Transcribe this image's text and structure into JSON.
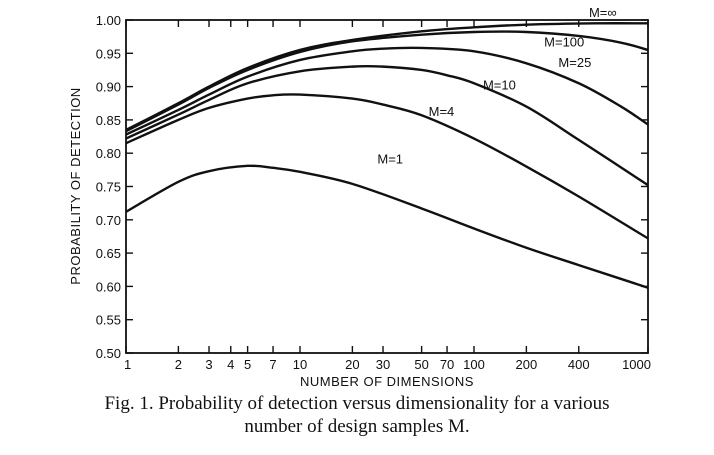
{
  "chart_data": {
    "type": "line",
    "xscale": "log",
    "xlabel": "NUMBER OF DIMENSIONS",
    "ylabel": "PROBABILITY OF DETECTION",
    "xlim": [
      1,
      1000
    ],
    "ylim": [
      0.5,
      1.0
    ],
    "x_ticks": [
      1,
      2,
      3,
      4,
      5,
      7,
      10,
      20,
      30,
      50,
      70,
      100,
      200,
      400,
      1000
    ],
    "y_ticks": [
      0.5,
      0.55,
      0.6,
      0.65,
      0.7,
      0.75,
      0.8,
      0.85,
      0.9,
      0.95,
      1.0
    ],
    "x_tick_labels": [
      "1",
      "2",
      "3",
      "4",
      "5",
      "7",
      "10",
      "20",
      "30",
      "50",
      "70",
      "100",
      "200",
      "400",
      "1000"
    ],
    "y_tick_labels": [
      "0.50",
      "0.55",
      "0.60",
      "0.65",
      "0.70",
      "0.75",
      "0.80",
      "0.85",
      "0.90",
      "0.95",
      "1.00"
    ],
    "grid": false,
    "series": [
      {
        "name": "M=∞",
        "x": [
          1,
          2,
          3,
          5,
          10,
          20,
          50,
          100,
          200,
          500,
          1000
        ],
        "y": [
          0.835,
          0.875,
          0.9,
          0.928,
          0.955,
          0.97,
          0.983,
          0.989,
          0.993,
          0.995,
          0.995
        ]
      },
      {
        "name": "M=100",
        "x": [
          1,
          2,
          3,
          5,
          10,
          20,
          50,
          100,
          200,
          400,
          700,
          1000
        ],
        "y": [
          0.833,
          0.873,
          0.898,
          0.925,
          0.952,
          0.968,
          0.978,
          0.982,
          0.982,
          0.976,
          0.966,
          0.955
        ]
      },
      {
        "name": "M=25",
        "x": [
          1,
          2,
          3,
          5,
          10,
          20,
          30,
          50,
          100,
          200,
          400,
          700,
          1000
        ],
        "y": [
          0.828,
          0.865,
          0.888,
          0.915,
          0.94,
          0.953,
          0.957,
          0.958,
          0.953,
          0.935,
          0.905,
          0.87,
          0.843
        ]
      },
      {
        "name": "M=10",
        "x": [
          1,
          2,
          3,
          5,
          10,
          20,
          30,
          50,
          70,
          100,
          200,
          400,
          1000
        ],
        "y": [
          0.822,
          0.858,
          0.88,
          0.905,
          0.923,
          0.93,
          0.93,
          0.925,
          0.917,
          0.905,
          0.87,
          0.82,
          0.752
        ]
      },
      {
        "name": "M=4",
        "x": [
          1,
          2,
          3,
          5,
          7,
          10,
          20,
          30,
          50,
          100,
          200,
          400,
          1000
        ],
        "y": [
          0.815,
          0.85,
          0.868,
          0.882,
          0.887,
          0.888,
          0.882,
          0.873,
          0.857,
          0.822,
          0.78,
          0.735,
          0.672
        ]
      },
      {
        "name": "M=1",
        "x": [
          1,
          2,
          3,
          5,
          7,
          10,
          20,
          50,
          100,
          200,
          400,
          1000
        ],
        "y": [
          0.712,
          0.757,
          0.773,
          0.781,
          0.778,
          0.772,
          0.754,
          0.717,
          0.687,
          0.658,
          0.632,
          0.598
        ]
      }
    ],
    "annotations": [
      {
        "text": "M=∞",
        "x": 550,
        "y": 1.012
      },
      {
        "text": "M=100",
        "x": 330,
        "y": 0.968
      },
      {
        "text": "M=25",
        "x": 380,
        "y": 0.937
      },
      {
        "text": "M=10",
        "x": 140,
        "y": 0.903
      },
      {
        "text": "M=4",
        "x": 65,
        "y": 0.863
      },
      {
        "text": "M=1",
        "x": 33,
        "y": 0.792
      }
    ]
  },
  "caption": {
    "line1": "Fig. 1. Probability of detection versus dimensionality for a various",
    "line2": "number of design samples M."
  }
}
